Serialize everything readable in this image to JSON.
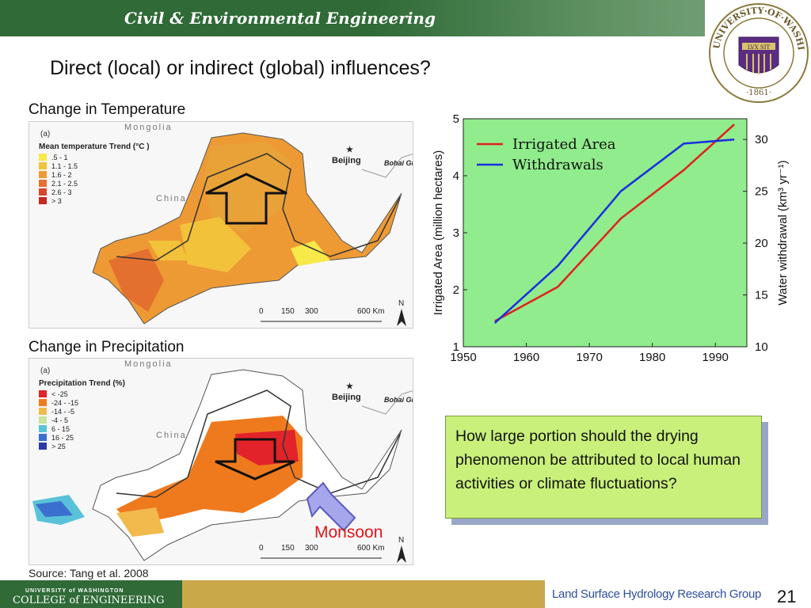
{
  "header": {
    "banner_title": "Civil & Environmental Engineering",
    "seal_text_top": "UNIVERSITY·OF·WASHINGTON",
    "seal_year": "·1861·",
    "seal_motto": "LVX SIT"
  },
  "slide": {
    "title": "Direct (local) or indirect (global) influences?",
    "temperature_label": "Change in Temperature",
    "precipitation_label": "Change in Precipitation"
  },
  "map_temperature": {
    "panel_letter": "(a)",
    "region_label": "Mongolia",
    "country_label": "China",
    "city_label": "Beijing",
    "gulf_label": "Bohai Gulf",
    "legend_title": "Mean temperature Trend  (°C )",
    "legend": [
      {
        "label": ".5 - 1",
        "color": "#f7e94a"
      },
      {
        "label": "1.1 - 1.5",
        "color": "#f2c23a"
      },
      {
        "label": "1.6 - 2",
        "color": "#ee9a34"
      },
      {
        "label": "2.1 - 2.5",
        "color": "#e47030"
      },
      {
        "label": "2.6 - 3",
        "color": "#d8462c"
      },
      {
        "label": "> 3",
        "color": "#c42a26"
      }
    ],
    "scale": [
      "0",
      "150",
      "300",
      "600 Km"
    ],
    "north": "N"
  },
  "map_precipitation": {
    "panel_letter": "(a)",
    "region_label": "Mongolia",
    "country_label": "China",
    "city_label": "Beijing",
    "gulf_label": "Bohai Gulf",
    "legend_title": "Precipitation Trend (%)",
    "legend": [
      {
        "label": "< -25",
        "color": "#e2232a"
      },
      {
        "label": "-24 - -15",
        "color": "#ef7a1e"
      },
      {
        "label": "-14 - -5",
        "color": "#f2b94c"
      },
      {
        "label": "-4 - 5",
        "color": "#c7e4a0"
      },
      {
        "label": "6 - 15",
        "color": "#59c2d9"
      },
      {
        "label": "16 - 25",
        "color": "#3a6fcf"
      },
      {
        "label": "> 25",
        "color": "#2b3aa8"
      }
    ],
    "scale": [
      "0",
      "150",
      "300",
      "600 Km"
    ],
    "north": "N"
  },
  "chart_data": {
    "type": "line",
    "series": [
      {
        "name": "Irrigated Area",
        "color": "#e02020",
        "axis": "left",
        "x": [
          1955,
          1965,
          1975,
          1985,
          1993
        ],
        "y": [
          1.45,
          2.05,
          3.25,
          4.1,
          4.9
        ]
      },
      {
        "name": "Withdrawals",
        "color": "#1a2ee0",
        "axis": "right",
        "x": [
          1955,
          1965,
          1975,
          1985,
          1993
        ],
        "y": [
          12.3,
          17.8,
          25.0,
          29.6,
          30.0
        ]
      }
    ],
    "xlim": [
      1950,
      1995
    ],
    "x_ticks": [
      "1950",
      "1960",
      "1970",
      "1980",
      "1990"
    ],
    "left_ylim": [
      1,
      5
    ],
    "left_ticks": [
      "1",
      "2",
      "3",
      "4",
      "5"
    ],
    "left_ylabel": "Irrigated Area (million hectares)",
    "right_ylim": [
      10,
      32
    ],
    "right_ticks": [
      "10",
      "15",
      "20",
      "25",
      "30"
    ],
    "right_ylabel": "Water withdrawal (km³ yr⁻¹)",
    "background": "#90ec8c",
    "legend_position": "top-left"
  },
  "callout": {
    "question": "How large portion should the drying phenomenon be attributed to local human activities or climate fluctuations?",
    "monsoon": "Monsoon"
  },
  "footer": {
    "source": "Source: Tang et al. 2008",
    "coe_line1": "UNIVERSITY of WASHINGTON",
    "coe_line2": "COLLEGE of ENGINEERING",
    "group": "Land Surface Hydrology Research Group",
    "page_number": "21"
  }
}
